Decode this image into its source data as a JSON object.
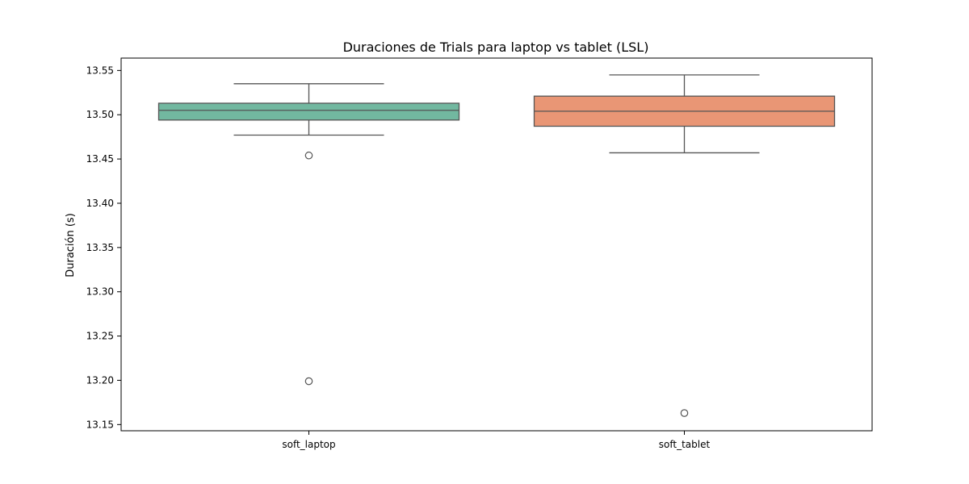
{
  "chart_data": {
    "type": "box",
    "title": "Duraciones de Trials para laptop vs tablet (LSL)",
    "xlabel": "",
    "ylabel": "Duración (s)",
    "ylim": [
      13.143,
      13.564
    ],
    "y_ticks": [
      "13.15",
      "13.20",
      "13.25",
      "13.30",
      "13.35",
      "13.40",
      "13.45",
      "13.50",
      "13.55"
    ],
    "categories": [
      "soft_laptop",
      "soft_tablet"
    ],
    "boxes": [
      {
        "category": "soft_laptop",
        "whisker_low": 13.477,
        "q1": 13.494,
        "median": 13.505,
        "q3": 13.513,
        "whisker_high": 13.535,
        "outliers": [
          13.454,
          13.199
        ],
        "color": "#72b8a0"
      },
      {
        "category": "soft_tablet",
        "whisker_low": 13.457,
        "q1": 13.487,
        "median": 13.504,
        "q3": 13.521,
        "whisker_high": 13.545,
        "outliers": [
          13.163
        ],
        "color": "#e99675"
      }
    ],
    "grid": false,
    "legend": "none"
  }
}
